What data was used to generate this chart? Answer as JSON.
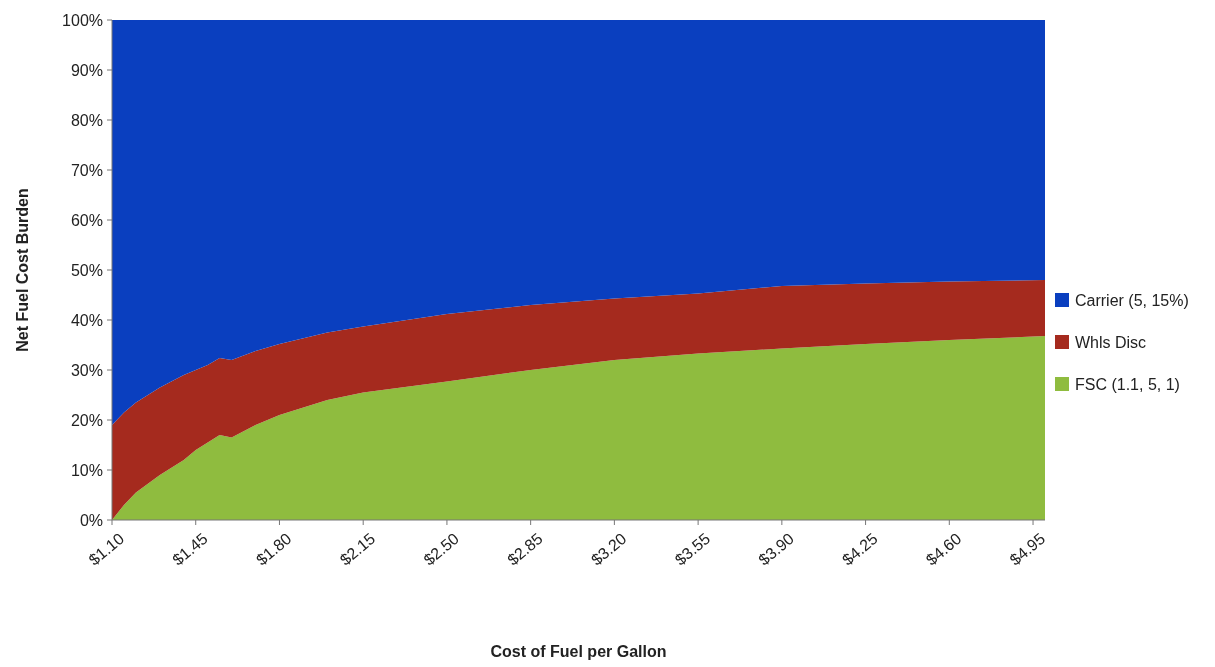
{
  "chart_data": {
    "type": "area",
    "stacked": true,
    "xlabel": "Cost of Fuel per Gallon",
    "ylabel": "Net Fuel Cost Burden",
    "x": [
      1.1,
      1.15,
      1.2,
      1.3,
      1.4,
      1.45,
      1.5,
      1.55,
      1.6,
      1.7,
      1.8,
      2.0,
      2.15,
      2.5,
      2.85,
      3.2,
      3.55,
      3.9,
      4.25,
      4.6,
      5.0
    ],
    "series": [
      {
        "name": "FSC (1.1, 5, 1)",
        "color": "#8fbc3f",
        "values": [
          0,
          3,
          5.5,
          9,
          12,
          14,
          15.5,
          17,
          16.5,
          19,
          21,
          24,
          25.5,
          27.7,
          30,
          32,
          33.3,
          34.3,
          35.2,
          36,
          36.8
        ]
      },
      {
        "name": "Whls Disc",
        "color": "#a52a1e",
        "values": [
          19,
          18.5,
          18,
          17.5,
          17,
          16,
          15.5,
          15.4,
          15.5,
          14.8,
          14.2,
          13.5,
          13.2,
          13.5,
          13,
          12.3,
          12,
          12.5,
          12.1,
          11.7,
          11.2
        ]
      },
      {
        "name": "Carrier (5, 15%)",
        "color": "#0a3fbf",
        "values": [
          81,
          78.5,
          76.5,
          73.5,
          71,
          70,
          69,
          67.6,
          68,
          66.2,
          64.8,
          62.5,
          61.3,
          58.8,
          57,
          55.7,
          54.7,
          53.2,
          52.7,
          52.3,
          52
        ]
      }
    ],
    "xlim": [
      1.1,
      5.0
    ],
    "xticks": [
      {
        "value": 1.1,
        "label": "$1.10"
      },
      {
        "value": 1.45,
        "label": "$1.45"
      },
      {
        "value": 1.8,
        "label": "$1.80"
      },
      {
        "value": 2.15,
        "label": "$2.15"
      },
      {
        "value": 2.5,
        "label": "$2.50"
      },
      {
        "value": 2.85,
        "label": "$2.85"
      },
      {
        "value": 3.2,
        "label": "$3.20"
      },
      {
        "value": 3.55,
        "label": "$3.55"
      },
      {
        "value": 3.9,
        "label": "$3.90"
      },
      {
        "value": 4.25,
        "label": "$4.25"
      },
      {
        "value": 4.6,
        "label": "$4.60"
      },
      {
        "value": 4.95,
        "label": "$4.95"
      }
    ],
    "ylim": [
      0,
      100
    ],
    "yticks": [
      {
        "value": 0,
        "label": "0%"
      },
      {
        "value": 10,
        "label": "10%"
      },
      {
        "value": 20,
        "label": "20%"
      },
      {
        "value": 30,
        "label": "30%"
      },
      {
        "value": 40,
        "label": "40%"
      },
      {
        "value": 50,
        "label": "50%"
      },
      {
        "value": 60,
        "label": "60%"
      },
      {
        "value": 70,
        "label": "70%"
      },
      {
        "value": 80,
        "label": "80%"
      },
      {
        "value": 90,
        "label": "90%"
      },
      {
        "value": 100,
        "label": "100%"
      }
    ],
    "legend": "right"
  }
}
